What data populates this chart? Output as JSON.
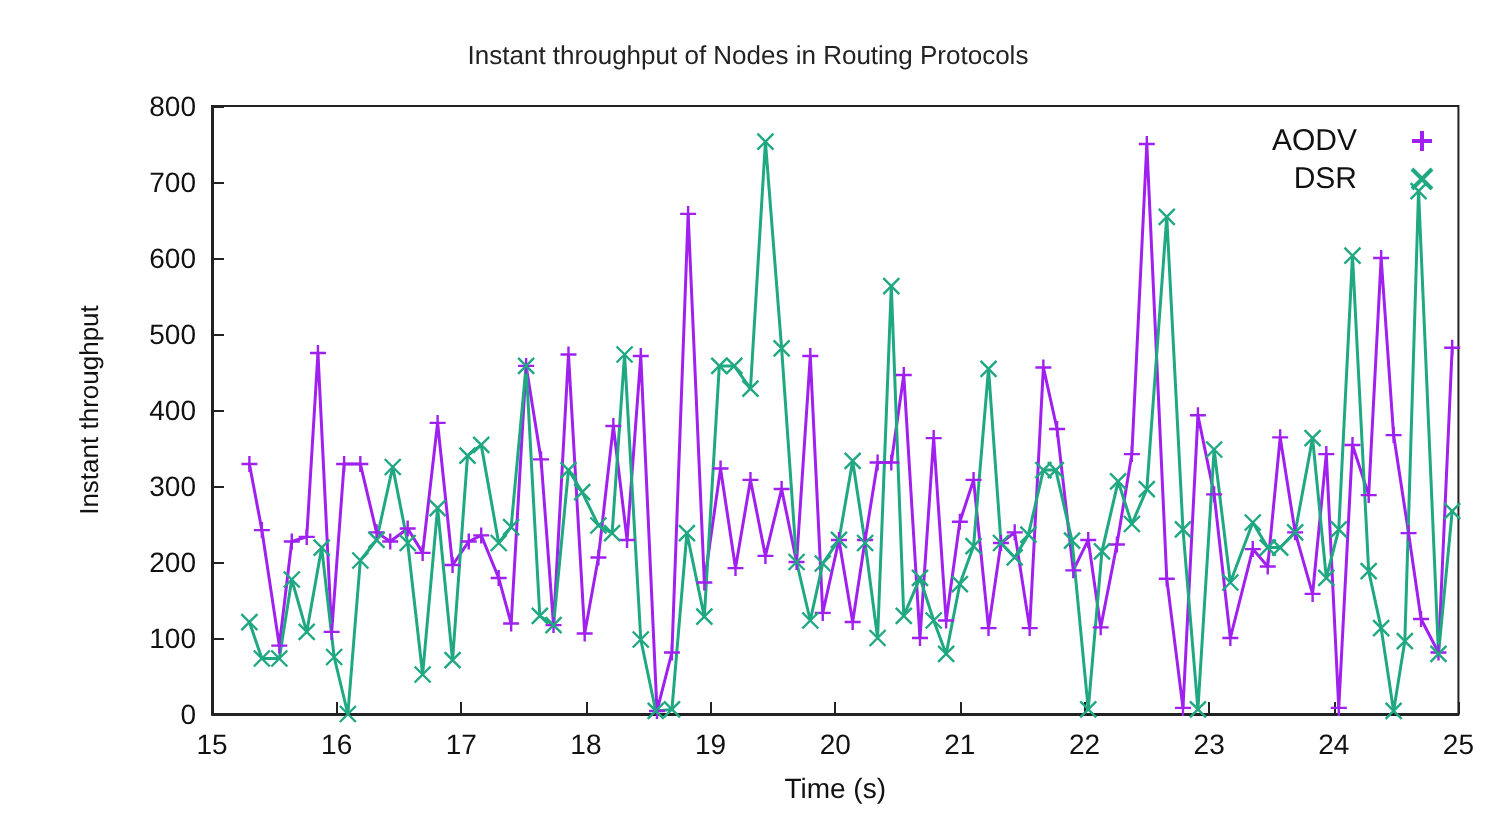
{
  "chart_data": {
    "type": "line",
    "title": "Instant throughput of Nodes in Routing Protocols",
    "xlabel": "Time (s)",
    "ylabel": "Instant throughput",
    "xlim": [
      15,
      25
    ],
    "xticks": [
      15,
      16,
      17,
      18,
      19,
      20,
      21,
      22,
      23,
      24,
      25
    ],
    "ylim": [
      0,
      800
    ],
    "yticks": [
      0,
      100,
      200,
      300,
      400,
      500,
      600,
      700,
      800
    ],
    "grid": false,
    "legend": "top right",
    "line_style": "solid",
    "series": [
      {
        "name": "AODV",
        "color": "#a020f0",
        "marker": "plus",
        "x": [
          15.3,
          15.4,
          15.54,
          15.64,
          15.76,
          15.85,
          15.96,
          16.06,
          16.19,
          16.32,
          16.43,
          16.57,
          16.69,
          16.81,
          16.93,
          17.06,
          17.16,
          17.3,
          17.4,
          17.52,
          17.64,
          17.74,
          17.86,
          17.99,
          18.1,
          18.22,
          18.33,
          18.44,
          18.57,
          18.69,
          18.82,
          18.95,
          19.08,
          19.2,
          19.32,
          19.44,
          19.57,
          19.69,
          19.8,
          19.9,
          20.03,
          20.14,
          20.24,
          20.34,
          20.45,
          20.55,
          20.68,
          20.79,
          20.89,
          21.0,
          21.11,
          21.23,
          21.33,
          21.44,
          21.56,
          21.67,
          21.78,
          21.91,
          22.03,
          22.13,
          22.26,
          22.38,
          22.5,
          22.66,
          22.79,
          22.91,
          23.04,
          23.17,
          23.35,
          23.47,
          23.57,
          23.69,
          23.83,
          23.94,
          24.04,
          24.15,
          24.28,
          24.38,
          24.48,
          24.6,
          24.7,
          24.84,
          24.95
        ],
        "values": [
          329,
          242,
          90,
          227,
          233,
          475,
          108,
          329,
          329,
          239,
          227,
          244,
          212,
          383,
          196,
          227,
          235,
          179,
          119,
          458,
          335,
          117,
          473,
          106,
          206,
          379,
          229,
          471,
          4,
          81,
          658,
          173,
          323,
          192,
          308,
          208,
          296,
          200,
          471,
          133,
          229,
          121,
          229,
          331,
          331,
          446,
          100,
          363,
          123,
          253,
          308,
          113,
          225,
          239,
          113,
          456,
          375,
          189,
          229,
          114,
          223,
          342,
          750,
          178,
          8,
          393,
          289,
          100,
          217,
          194,
          364,
          239,
          158,
          342,
          8,
          354,
          288,
          600,
          367,
          238,
          125,
          81,
          482
        ]
      },
      {
        "name": "DSR",
        "color": "#1fa882",
        "marker": "cross",
        "x": [
          15.3,
          15.4,
          15.54,
          15.64,
          15.76,
          15.88,
          15.98,
          16.09,
          16.19,
          16.32,
          16.45,
          16.57,
          16.69,
          16.81,
          16.93,
          17.05,
          17.16,
          17.3,
          17.4,
          17.52,
          17.63,
          17.74,
          17.86,
          17.97,
          18.1,
          18.21,
          18.31,
          18.44,
          18.56,
          18.69,
          18.81,
          18.95,
          19.07,
          19.19,
          19.32,
          19.44,
          19.57,
          19.69,
          19.8,
          19.9,
          20.03,
          20.14,
          20.24,
          20.34,
          20.45,
          20.55,
          20.68,
          20.79,
          20.89,
          21.0,
          21.11,
          21.23,
          21.33,
          21.44,
          21.55,
          21.67,
          21.77,
          21.9,
          22.03,
          22.14,
          22.27,
          22.38,
          22.5,
          22.66,
          22.79,
          22.91,
          23.04,
          23.17,
          23.35,
          23.47,
          23.57,
          23.69,
          23.83,
          23.94,
          24.04,
          24.15,
          24.28,
          24.38,
          24.48,
          24.57,
          24.68,
          24.84,
          24.95
        ],
        "values": [
          121,
          73,
          73,
          177,
          108,
          219,
          75,
          0,
          202,
          229,
          325,
          225,
          52,
          271,
          71,
          340,
          354,
          225,
          246,
          458,
          129,
          117,
          321,
          292,
          248,
          238,
          473,
          98,
          4,
          6,
          238,
          128,
          458,
          458,
          428,
          753,
          481,
          200,
          123,
          198,
          229,
          333,
          225,
          100,
          563,
          129,
          179,
          123,
          79,
          171,
          221,
          454,
          225,
          206,
          236,
          321,
          321,
          228,
          6,
          214,
          306,
          250,
          296,
          654,
          243,
          6,
          348,
          173,
          252,
          219,
          219,
          239,
          363,
          179,
          243,
          603,
          188,
          113,
          4,
          96,
          688,
          79,
          267
        ]
      }
    ]
  }
}
